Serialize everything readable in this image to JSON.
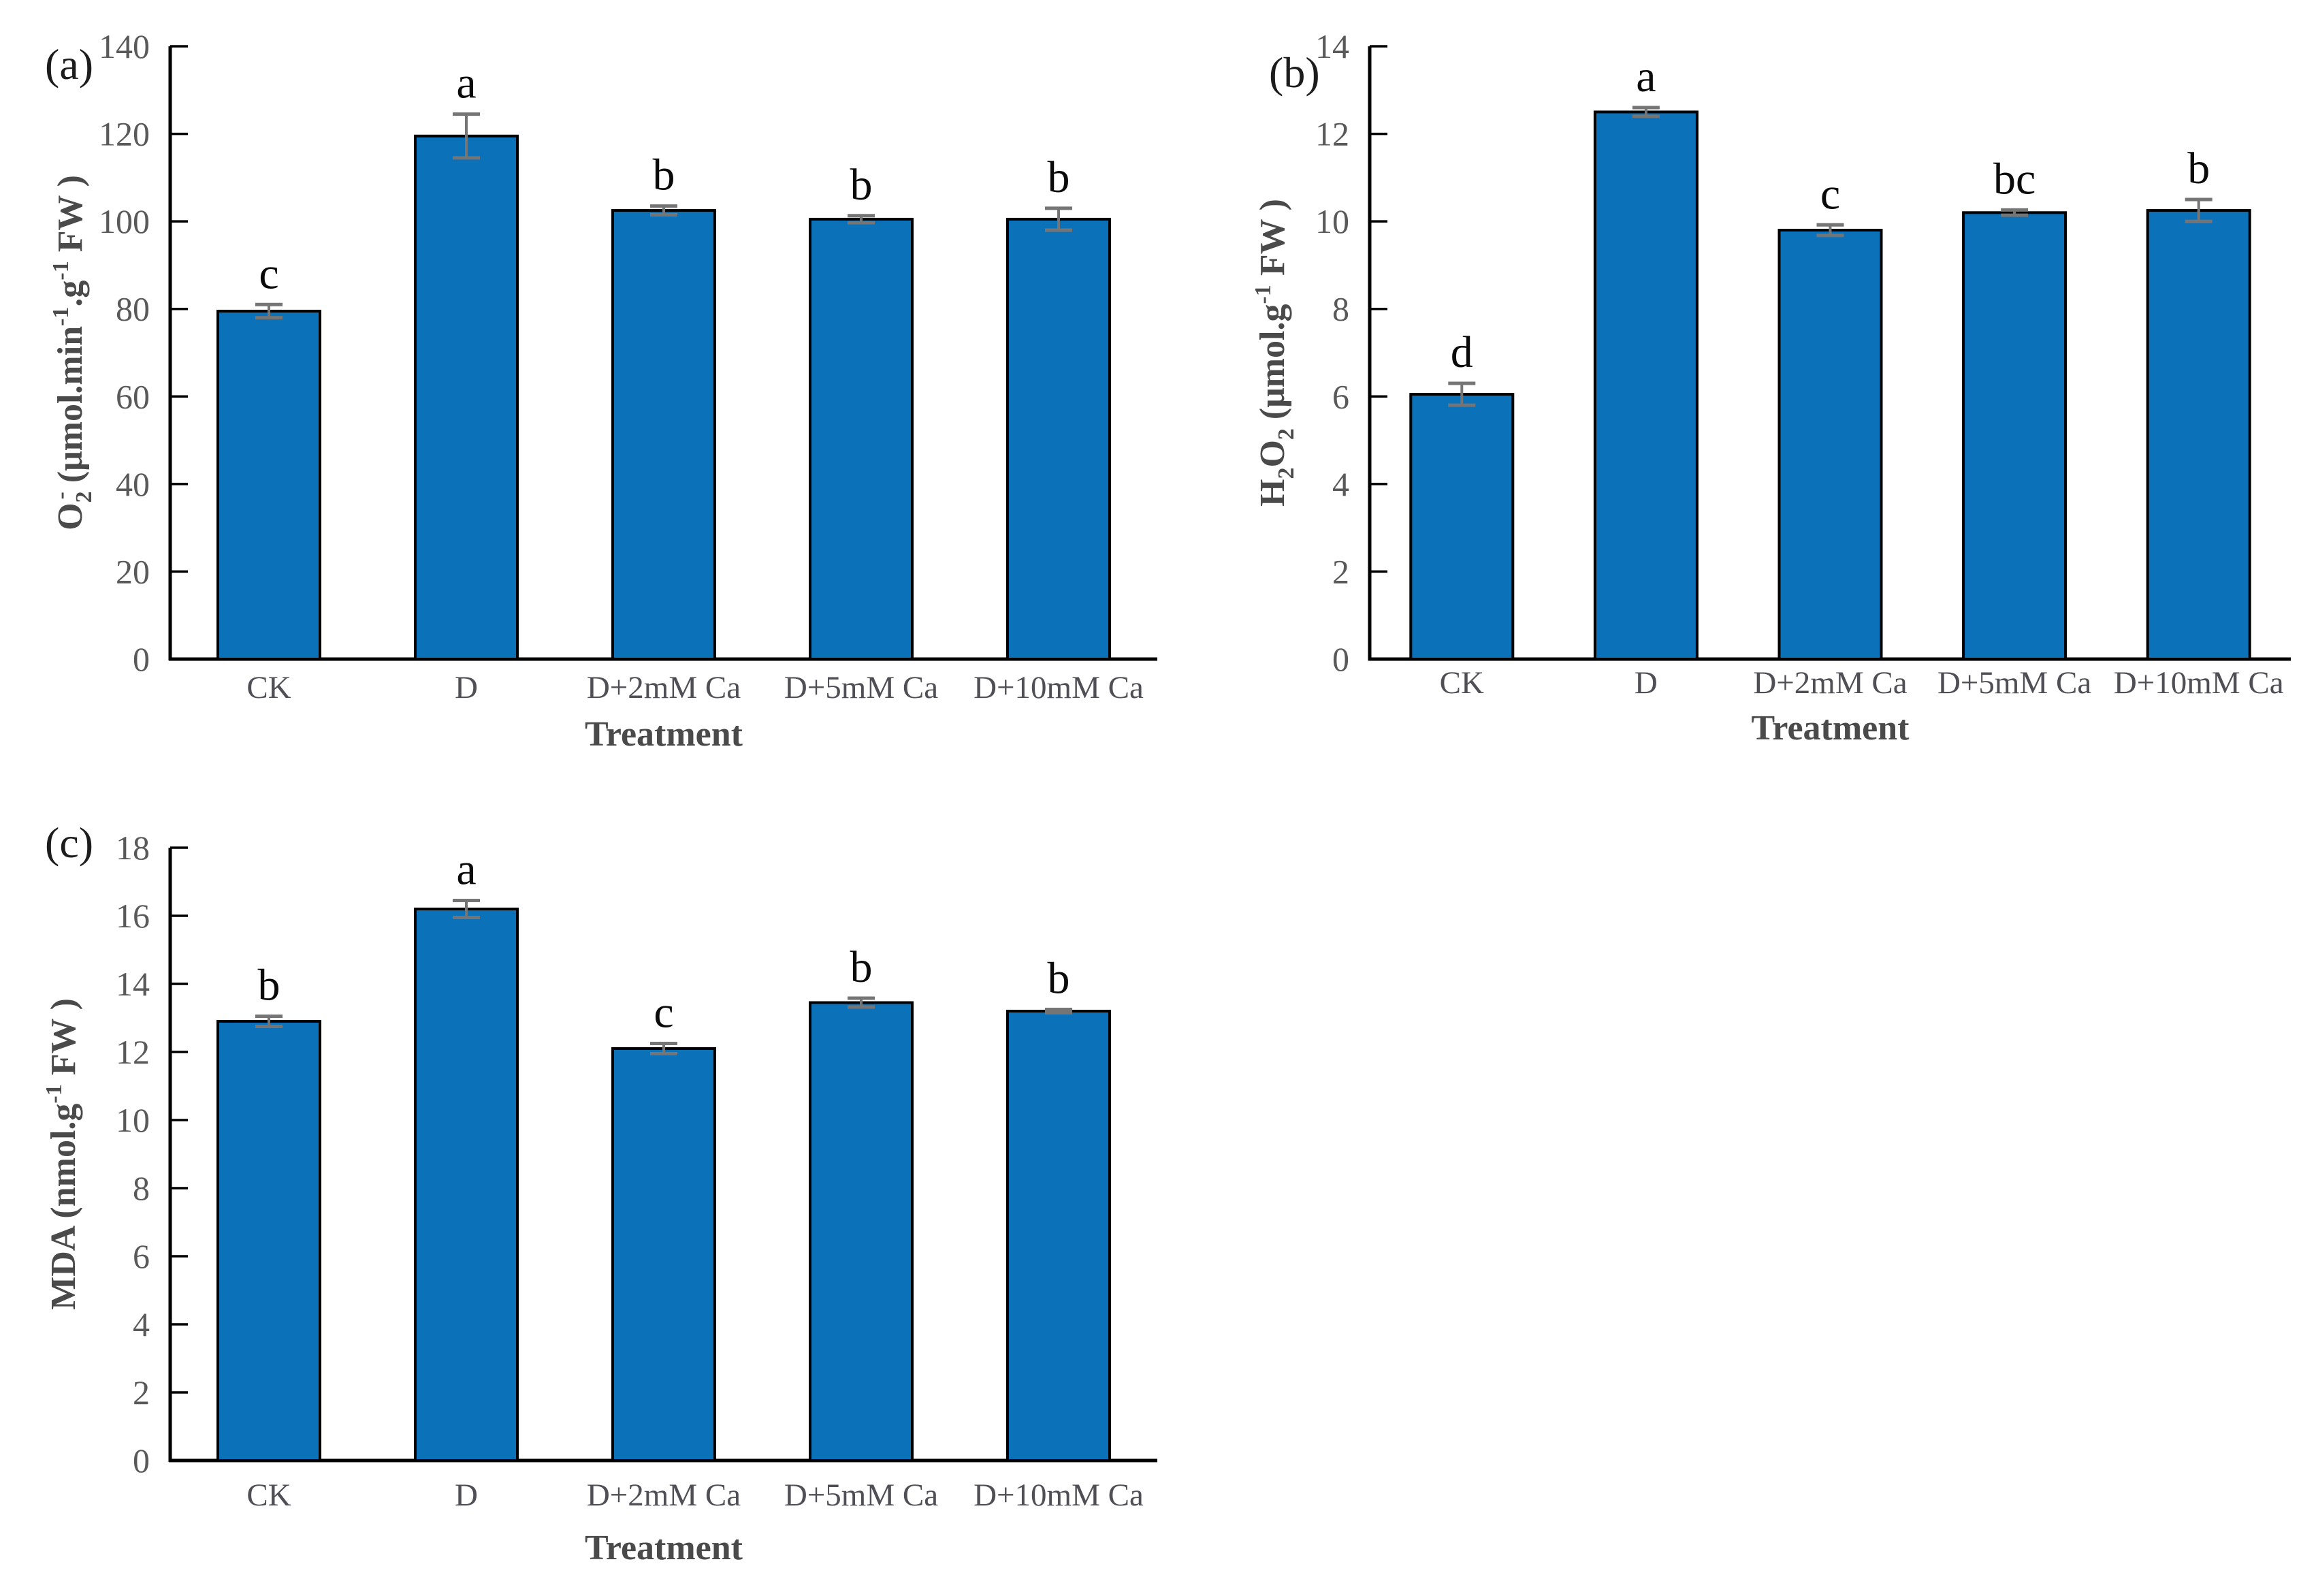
{
  "colors": {
    "background": "#ffffff",
    "bar_fill": "#0b72ba",
    "bar_stroke": "#000000",
    "error_bar": "#757575",
    "axis_line": "#000000",
    "tick_label": "#595959",
    "category_label": "#4f4f55",
    "axis_title": "#4a4a4a",
    "letter": "#0a0a0a",
    "panel_label": "#1c1c1c"
  },
  "chart_data": [
    {
      "id": "a",
      "type": "bar",
      "panel_label": "(a)",
      "title": "",
      "xlabel": "Treatment",
      "ylabel": "O2- (μmol.min-1.g-1 FW)",
      "ylabel_parts": [
        {
          "t": "O",
          "s": "n"
        },
        {
          "t": "2",
          "s": "sub"
        },
        {
          "t": "-",
          "s": "sup",
          "dx": -12
        },
        {
          "t": " (μmol.min",
          "s": "n"
        },
        {
          "t": "-1",
          "s": "sup"
        },
        {
          "t": ".g",
          "s": "n"
        },
        {
          "t": "-1",
          "s": "sup"
        },
        {
          "t": " FW )",
          "s": "n"
        }
      ],
      "categories": [
        "CK",
        "D",
        "D+2mM Ca",
        "D+5mM Ca",
        "D+10mM Ca"
      ],
      "values": [
        79.5,
        119.5,
        102.5,
        100.5,
        100.5
      ],
      "errors": [
        1.5,
        5.0,
        1.0,
        0.8,
        2.5
      ],
      "sig_letters": [
        "c",
        "a",
        "b",
        "b",
        "b"
      ],
      "ylim": [
        0,
        140
      ],
      "ytick_step": 20,
      "grid": false,
      "legend": null
    },
    {
      "id": "b",
      "type": "bar",
      "panel_label": "(b)",
      "title": "",
      "xlabel": "Treatment",
      "ylabel": "H2O2 (μmol.g-1 FW)",
      "ylabel_parts": [
        {
          "t": "H",
          "s": "n"
        },
        {
          "t": "2",
          "s": "sub"
        },
        {
          "t": "O",
          "s": "n"
        },
        {
          "t": "2",
          "s": "sub"
        },
        {
          "t": " (μmol.g",
          "s": "n"
        },
        {
          "t": "-1",
          "s": "sup"
        },
        {
          "t": " FW )",
          "s": "n"
        }
      ],
      "categories": [
        "CK",
        "D",
        "D+2mM Ca",
        "D+5mM Ca",
        "D+10mM Ca"
      ],
      "values": [
        6.05,
        12.5,
        9.8,
        10.2,
        10.25
      ],
      "errors": [
        0.25,
        0.1,
        0.12,
        0.06,
        0.25
      ],
      "sig_letters": [
        "d",
        "a",
        "c",
        "bc",
        "b"
      ],
      "ylim": [
        0,
        14
      ],
      "ytick_step": 2,
      "grid": false,
      "legend": null
    },
    {
      "id": "c",
      "type": "bar",
      "panel_label": "(c)",
      "title": "",
      "xlabel": "Treatment",
      "ylabel": "MDA (nmol.g-1 FW)",
      "ylabel_parts": [
        {
          "t": "MDA (nmol.g",
          "s": "n"
        },
        {
          "t": "-1",
          "s": "sup"
        },
        {
          "t": " FW )",
          "s": "n"
        }
      ],
      "categories": [
        "CK",
        "D",
        "D+2mM Ca",
        "D+5mM Ca",
        "D+10mM Ca"
      ],
      "values": [
        12.9,
        16.2,
        12.1,
        13.45,
        13.2
      ],
      "errors": [
        0.15,
        0.25,
        0.15,
        0.13,
        0.05
      ],
      "sig_letters": [
        "b",
        "a",
        "c",
        "b",
        "b"
      ],
      "ylim": [
        0,
        18
      ],
      "ytick_step": 2,
      "grid": false,
      "legend": null
    }
  ]
}
